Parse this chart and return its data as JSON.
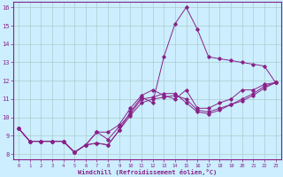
{
  "xlabel": "Windchill (Refroidissement éolien,°C)",
  "background_color": "#cceeff",
  "line_color": "#882288",
  "grid_color": "#aacccc",
  "xlim": [
    -0.5,
    23.5
  ],
  "ylim": [
    7.7,
    16.3
  ],
  "yticks": [
    8,
    9,
    10,
    11,
    12,
    13,
    14,
    15,
    16
  ],
  "xticks": [
    0,
    1,
    2,
    3,
    4,
    5,
    6,
    7,
    8,
    9,
    10,
    11,
    12,
    13,
    14,
    15,
    16,
    17,
    18,
    19,
    20,
    21,
    22,
    23
  ],
  "series": {
    "s1_jagged": [
      9.4,
      8.7,
      8.7,
      8.7,
      8.7,
      8.1,
      8.5,
      8.6,
      8.5,
      9.3,
      10.3,
      11.1,
      10.8,
      13.3,
      15.1,
      16.0,
      14.8,
      13.3,
      13.2,
      13.1,
      13.0,
      12.9,
      12.8,
      11.9
    ],
    "s2_jagged": [
      9.4,
      8.7,
      8.7,
      8.7,
      8.7,
      8.1,
      8.5,
      9.2,
      9.2,
      9.6,
      10.5,
      11.2,
      11.5,
      11.2,
      11.0,
      11.5,
      10.5,
      10.5,
      10.8,
      11.0,
      11.5,
      11.5,
      11.8,
      11.9
    ],
    "s3_jagged": [
      9.4,
      8.7,
      8.7,
      8.7,
      8.7,
      8.1,
      8.5,
      9.2,
      8.8,
      9.5,
      10.2,
      11.0,
      11.1,
      11.3,
      11.3,
      10.8,
      10.3,
      10.2,
      10.4,
      10.7,
      10.9,
      11.2,
      11.6,
      11.9
    ],
    "s4_linear": [
      9.4,
      8.7,
      8.7,
      8.7,
      8.7,
      8.1,
      8.5,
      8.6,
      8.5,
      9.3,
      10.1,
      10.8,
      11.0,
      11.1,
      11.2,
      11.0,
      10.4,
      10.3,
      10.5,
      10.7,
      11.0,
      11.3,
      11.7,
      11.9
    ]
  }
}
